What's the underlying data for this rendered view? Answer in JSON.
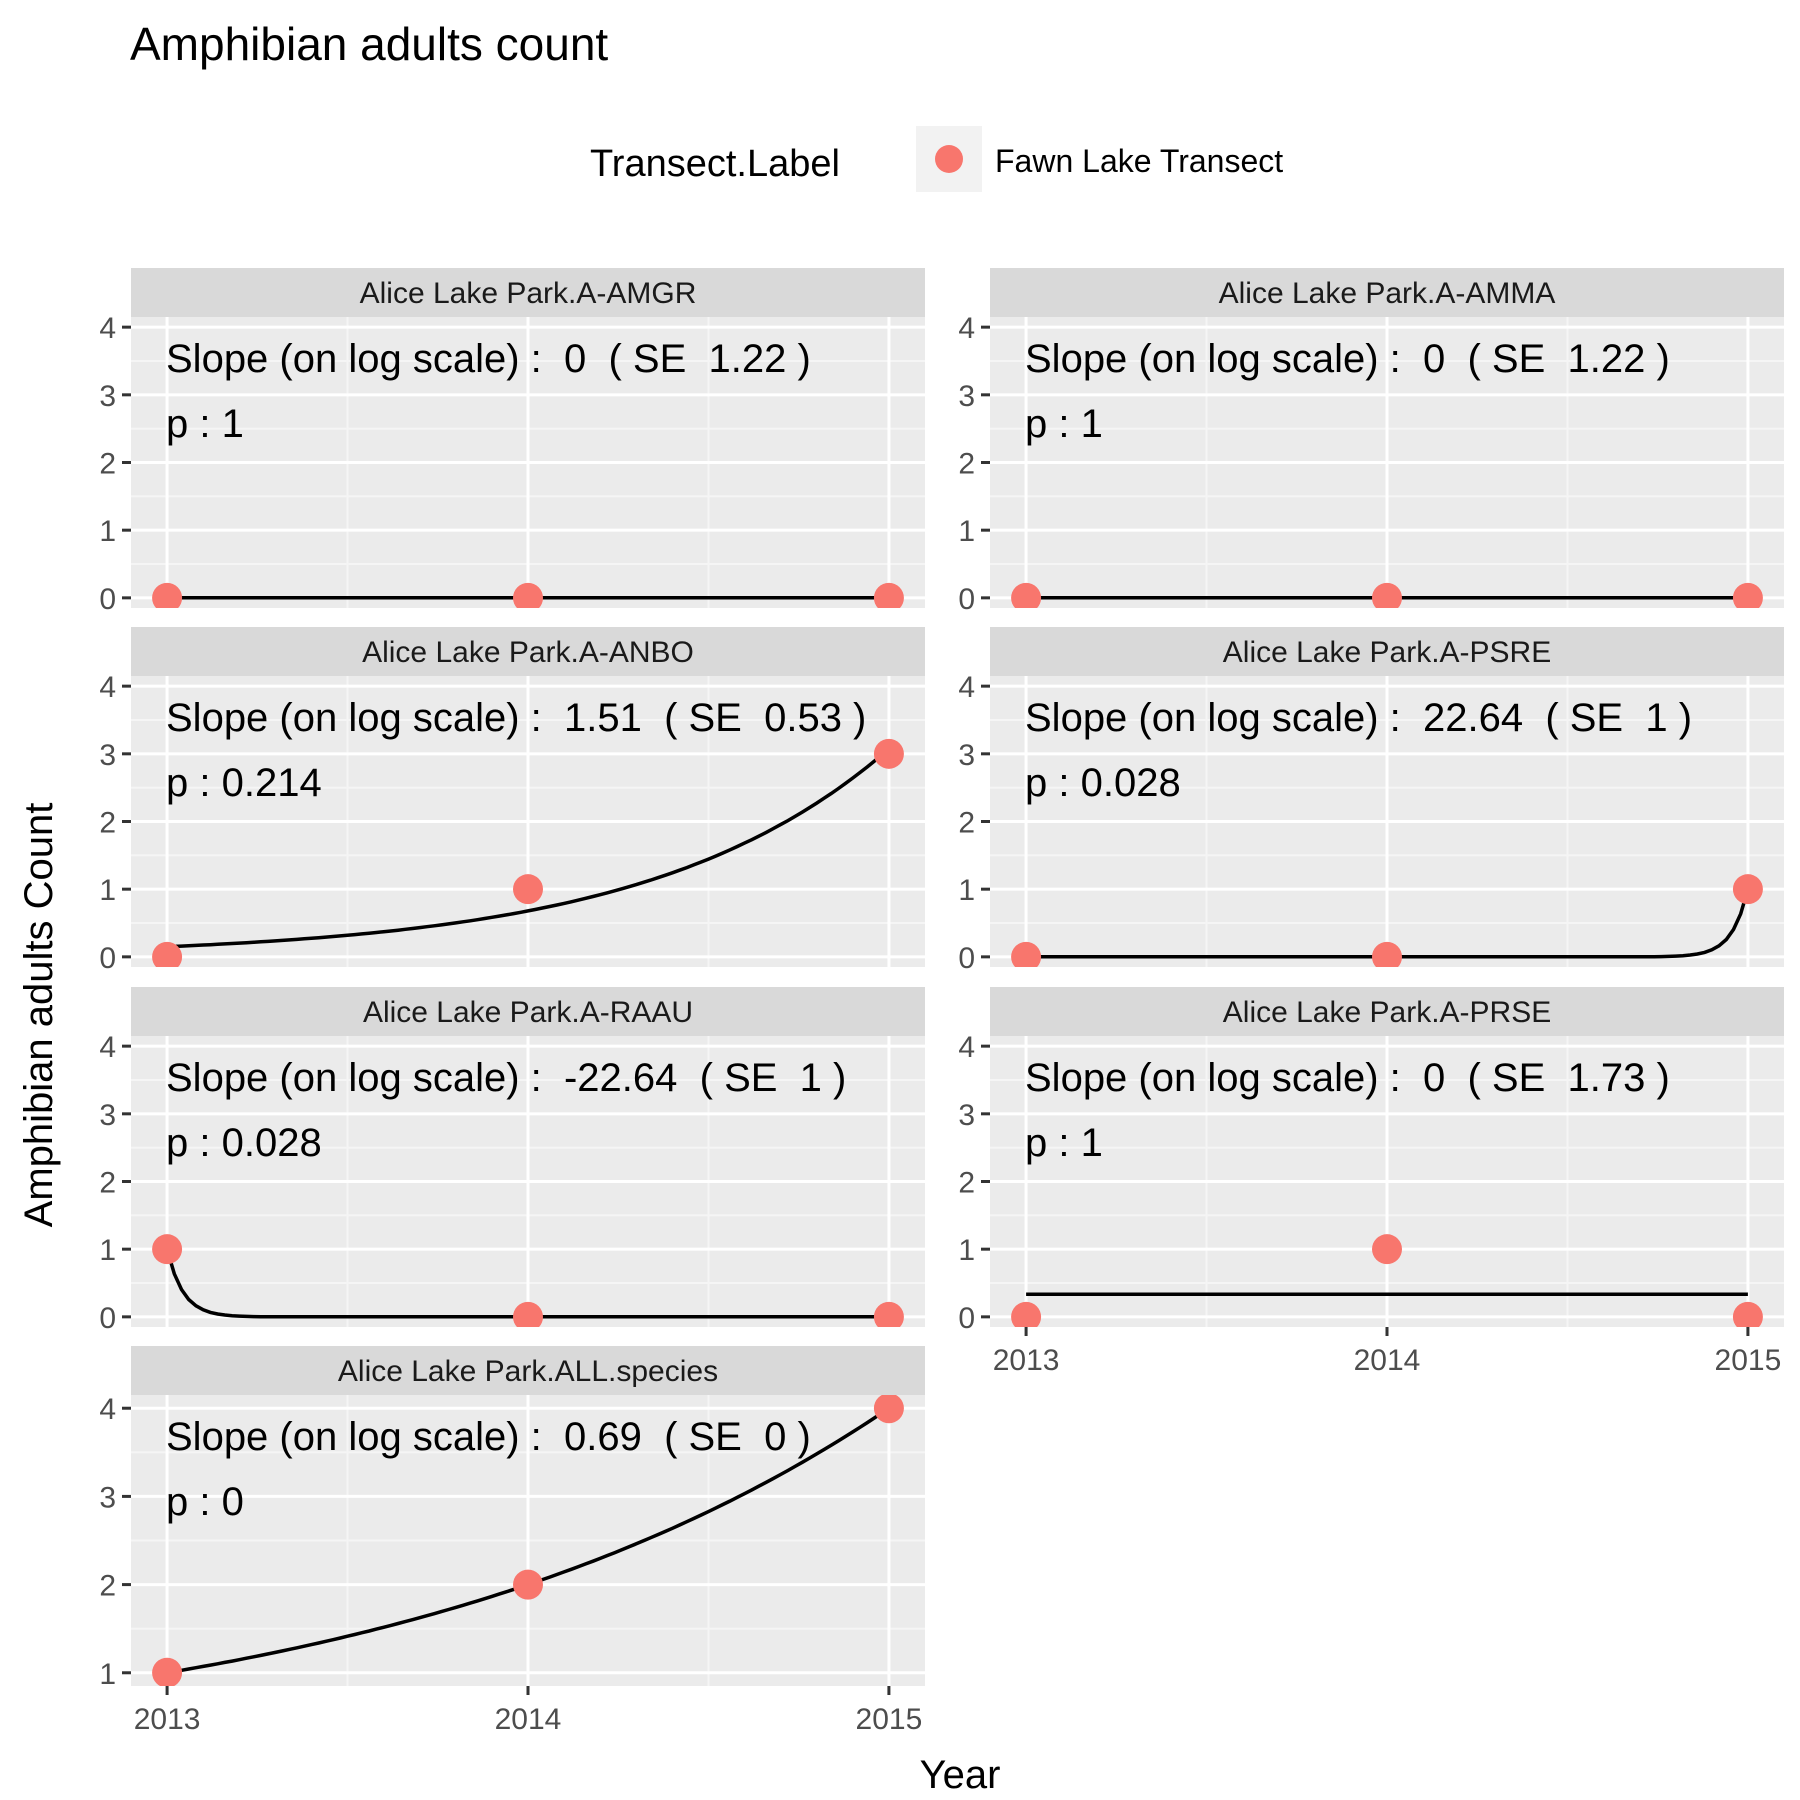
{
  "chart_data": {
    "type": "scatter",
    "title": "Amphibian adults count",
    "xlabel": "Year",
    "ylabel": "Amphibian adults Count",
    "legend": {
      "title": "Transect.Label",
      "entries": [
        "Fawn Lake Transect"
      ],
      "position": "top"
    },
    "colors": {
      "point": "#F8766D",
      "line": "#000000",
      "panel_bg": "#EBEBEB",
      "strip_bg": "#D9D9D9"
    },
    "x_ticks": [
      "2013",
      "2014",
      "2015"
    ],
    "panels": [
      {
        "strip": "Alice Lake Park.A-AMGR",
        "slope_text": "Slope (on log scale) :  0  ( SE  1.22 )",
        "p_text": "p : 1",
        "x": [
          2013,
          2014,
          2015
        ],
        "y": [
          0,
          0,
          0
        ],
        "fit": {
          "type": "exp",
          "a": 0,
          "b": 0,
          "const": 0
        },
        "ylim": [
          -0.15,
          4.15
        ],
        "y_ticks": [
          "0",
          "1",
          "2",
          "3",
          "4"
        ]
      },
      {
        "strip": "Alice Lake Park.A-AMMA",
        "slope_text": "Slope (on log scale) :  0  ( SE  1.22 )",
        "p_text": "p : 1",
        "x": [
          2013,
          2014,
          2015
        ],
        "y": [
          0,
          0,
          0
        ],
        "fit": {
          "type": "exp",
          "a": 0,
          "b": 0,
          "const": 0
        },
        "ylim": [
          -0.15,
          4.15
        ],
        "y_ticks": [
          "0",
          "1",
          "2",
          "3",
          "4"
        ]
      },
      {
        "strip": "Alice Lake Park.A-ANBO",
        "slope_text": "Slope (on log scale) :  1.51  ( SE  0.53 )",
        "p_text": "p : 0.214",
        "x": [
          2013,
          2014,
          2015
        ],
        "y": [
          0,
          1,
          3
        ],
        "fit": {
          "type": "exp",
          "a": 0.15,
          "b": 1.51,
          "const": null
        },
        "ylim": [
          -0.15,
          4.15
        ],
        "y_ticks": [
          "0",
          "1",
          "2",
          "3",
          "4"
        ]
      },
      {
        "strip": "Alice Lake Park.A-PSRE",
        "slope_text": "Slope (on log scale) :  22.64  ( SE  1 )",
        "p_text": "p : 0.028",
        "x": [
          2013,
          2014,
          2015
        ],
        "y": [
          0,
          0,
          1
        ],
        "fit": {
          "type": "exp",
          "a": 1,
          "b": 22.64,
          "anchor": 2015,
          "const": null
        },
        "ylim": [
          -0.15,
          4.15
        ],
        "y_ticks": [
          "0",
          "1",
          "2",
          "3",
          "4"
        ]
      },
      {
        "strip": "Alice Lake Park.A-RAAU",
        "slope_text": "Slope (on log scale) :  -22.64  ( SE  1 )",
        "p_text": "p : 0.028",
        "x": [
          2013,
          2014,
          2015
        ],
        "y": [
          1,
          0,
          0
        ],
        "fit": {
          "type": "exp",
          "a": 1,
          "b": -22.64,
          "anchor": 2013,
          "const": null
        },
        "ylim": [
          -0.15,
          4.15
        ],
        "y_ticks": [
          "0",
          "1",
          "2",
          "3",
          "4"
        ]
      },
      {
        "strip": "Alice Lake Park.A-PRSE",
        "slope_text": "Slope (on log scale) :  0  ( SE  1.73 )",
        "p_text": "p : 1",
        "x": [
          2013,
          2014,
          2015
        ],
        "y": [
          0,
          1,
          0
        ],
        "fit": {
          "type": "const",
          "const": 0.333
        },
        "ylim": [
          -0.15,
          4.15
        ],
        "y_ticks": [
          "0",
          "1",
          "2",
          "3",
          "4"
        ]
      },
      {
        "strip": "Alice Lake Park.ALL.species",
        "slope_text": "Slope (on log scale) :  0.69  ( SE  0 )",
        "p_text": "p : 0",
        "x": [
          2013,
          2014,
          2015
        ],
        "y": [
          1,
          2,
          4
        ],
        "fit": {
          "type": "exp",
          "a": 1,
          "b": 0.6931,
          "const": null
        },
        "ylim": [
          0.85,
          4.15
        ],
        "y_ticks": [
          "1",
          "2",
          "3",
          "4"
        ]
      }
    ]
  }
}
